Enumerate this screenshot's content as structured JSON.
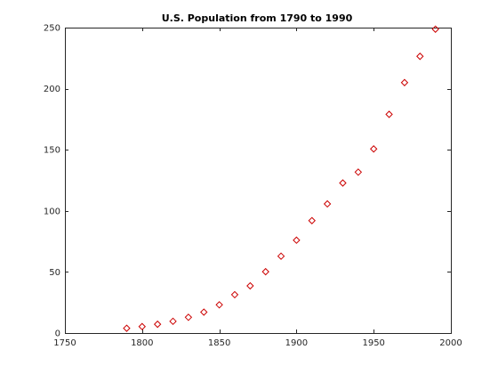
{
  "chart_data": {
    "type": "scatter",
    "title": "U.S. Population from 1790 to 1990",
    "xlabel": "",
    "ylabel": "",
    "xlim": [
      1750,
      2000
    ],
    "ylim": [
      0,
      250
    ],
    "xticks": [
      1750,
      1800,
      1850,
      1900,
      1950,
      2000
    ],
    "yticks": [
      0,
      50,
      100,
      150,
      200,
      250
    ],
    "grid": false,
    "legend": "none",
    "marker": "diamond",
    "marker_color": "#cc0000",
    "series": [
      {
        "x": [
          1790,
          1800,
          1810,
          1820,
          1830,
          1840,
          1850,
          1860,
          1870,
          1880,
          1890,
          1900,
          1910,
          1920,
          1930,
          1940,
          1950,
          1960,
          1970,
          1980,
          1990
        ],
        "y": [
          3.9,
          5.3,
          7.2,
          9.6,
          12.9,
          17.1,
          23.1,
          31.4,
          38.6,
          50.2,
          62.9,
          76.0,
          92.0,
          105.7,
          122.8,
          131.7,
          150.7,
          179.0,
          205.0,
          226.5,
          248.7
        ]
      }
    ]
  }
}
